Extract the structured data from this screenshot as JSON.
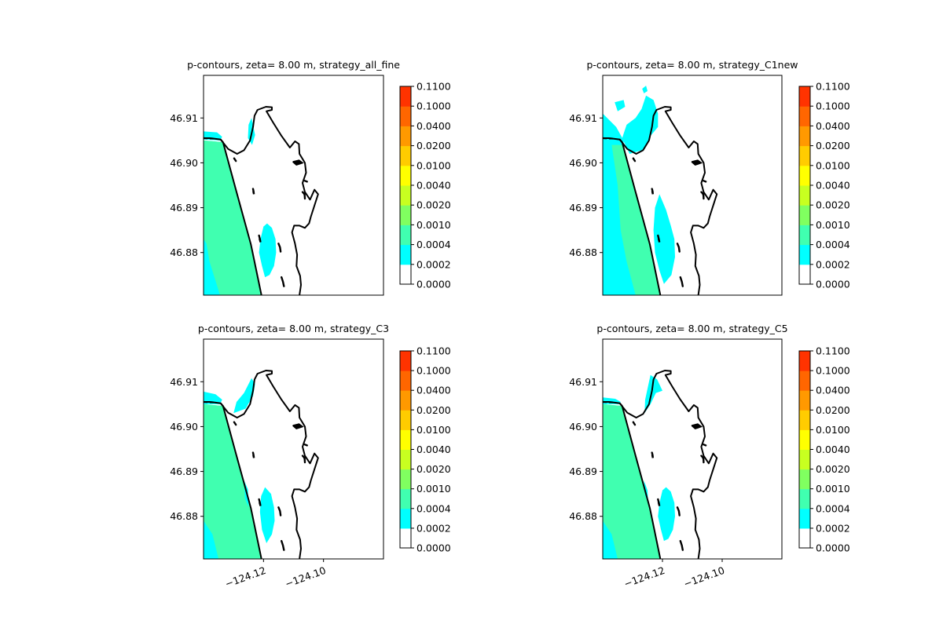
{
  "figure": {
    "panels": [
      {
        "title": "p-contours, zeta= 8.00 m, strategy_all_fine",
        "variant": "all_fine",
        "show_xticks": false
      },
      {
        "title": "p-contours, zeta= 8.00 m, strategy_C1new",
        "variant": "C1new",
        "show_xticks": false
      },
      {
        "title": "p-contours, zeta= 8.00 m, strategy_C3",
        "variant": "C3",
        "show_xticks": true
      },
      {
        "title": "p-contours, zeta= 8.00 m, strategy_C5",
        "variant": "C5",
        "show_xticks": true
      }
    ],
    "colors": {
      "c00": "#ffffff",
      "c01": "#00ffff",
      "c02": "#40ffb0",
      "c03": "#80ff60",
      "c04": "#c8ff20",
      "c05": "#ffff00",
      "c06": "#ffcc00",
      "c07": "#ff9900",
      "c08": "#ff6600",
      "c09": "#ff3300",
      "c10": "#ff0000",
      "coast": "#000000"
    }
  },
  "chart_data": {
    "type": "contour",
    "variable": "p",
    "levels": [
      0.0,
      0.0002,
      0.0004,
      0.001,
      0.002,
      0.004,
      0.01,
      0.02,
      0.04,
      0.1,
      0.11
    ],
    "colorbar_ticks": [
      "0.0000",
      "0.0002",
      "0.0004",
      "0.0010",
      "0.0020",
      "0.0040",
      "0.0100",
      "0.0200",
      "0.0400",
      "0.1000",
      "0.1100"
    ],
    "y_ticks": [
      "46.91",
      "46.90",
      "46.89",
      "46.88"
    ],
    "y_tick_values": [
      46.91,
      46.9,
      46.89,
      46.88
    ],
    "x_ticks": [
      "−124.12",
      "−124.10"
    ],
    "x_tick_values": [
      -124.12,
      -124.1
    ],
    "xlim": [
      -124.14,
      -124.08
    ],
    "ylim": [
      46.8705,
      46.9195
    ]
  }
}
